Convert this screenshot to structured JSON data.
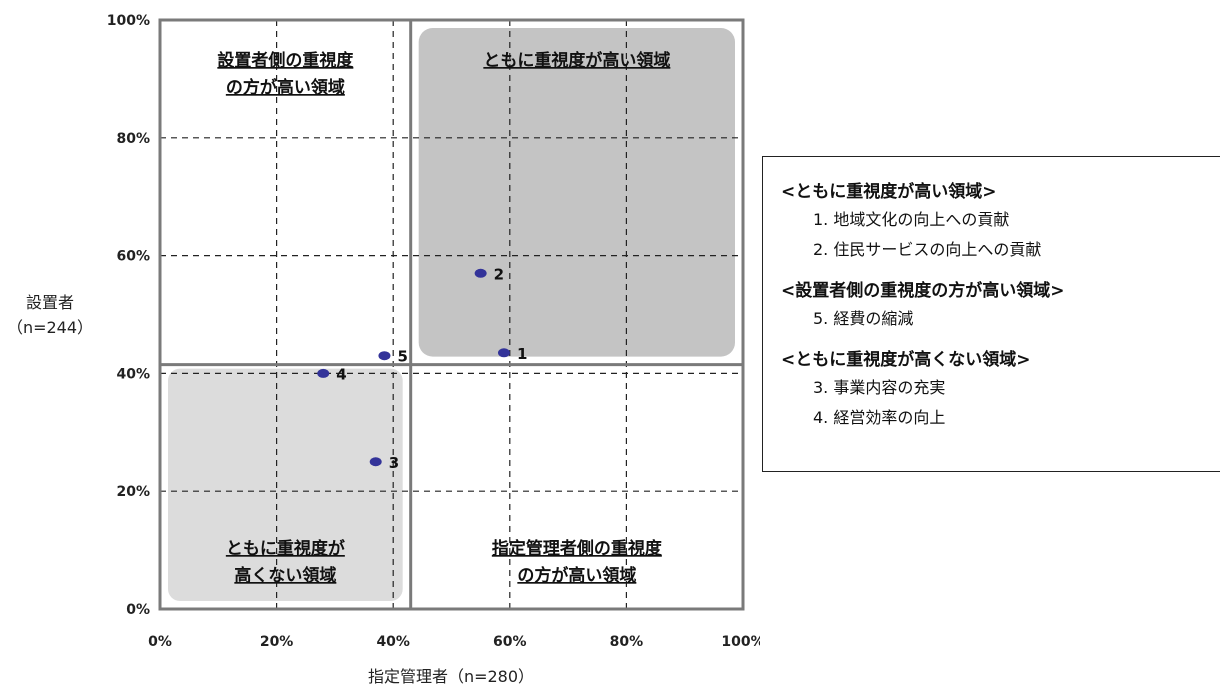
{
  "chart_data": {
    "type": "scatter",
    "xlabel": "指定管理者（n=280）",
    "ylabel_lines": [
      "設置者",
      "（n=244）"
    ],
    "xlim": [
      0,
      100
    ],
    "ylim": [
      0,
      100
    ],
    "x_ticks": [
      "0%",
      "20%",
      "40%",
      "60%",
      "80%",
      "100%"
    ],
    "y_ticks": [
      "0%",
      "20%",
      "40%",
      "60%",
      "80%",
      "100%"
    ],
    "grid": true,
    "quadrant_split": {
      "x": 43,
      "y": 41.5
    },
    "points": [
      {
        "label": "1",
        "x": 59,
        "y": 43.5
      },
      {
        "label": "2",
        "x": 55,
        "y": 57
      },
      {
        "label": "3",
        "x": 37,
        "y": 25
      },
      {
        "label": "4",
        "x": 28,
        "y": 40
      },
      {
        "label": "5",
        "x": 38.5,
        "y": 43
      }
    ],
    "point_color": "#333399",
    "region_fill_dark": "#c4c4c4",
    "region_fill_light": "#dcdcdc",
    "region_labels": {
      "top_left": [
        "設置者側の重視度",
        "の方が高い領域"
      ],
      "top_right": [
        "ともに重視度が高い領域"
      ],
      "bottom_left": [
        "ともに重視度が",
        "高くない領域"
      ],
      "bottom_right": [
        "指定管理者側の重視度",
        "の方が高い領域"
      ]
    }
  },
  "legend": {
    "groups": [
      {
        "heading": "<ともに重視度が高い領域>",
        "items": [
          "1. 地域文化の向上への貢献",
          "2. 住民サービスの向上への貢献"
        ]
      },
      {
        "heading": "<設置者側の重視度の方が高い領域>",
        "items": [
          "5. 経費の縮減"
        ]
      },
      {
        "heading": "<ともに重視度が高くない領域>",
        "items": [
          "3. 事業内容の充実",
          "4. 経営効率の向上"
        ]
      }
    ]
  }
}
